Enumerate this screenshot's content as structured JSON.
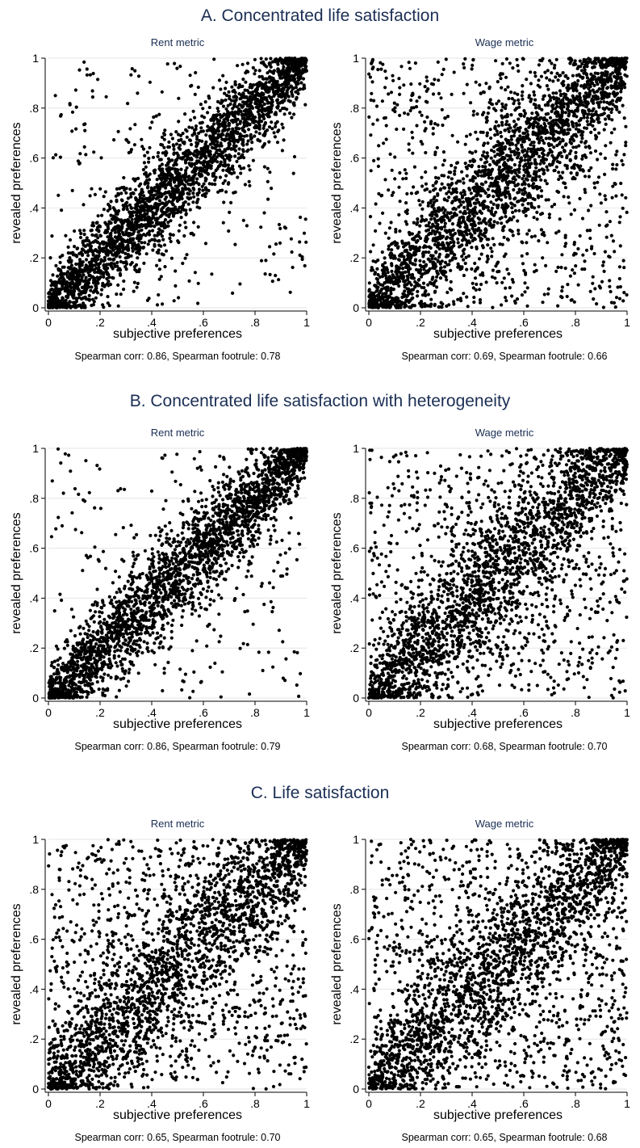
{
  "figure": {
    "sections": [
      {
        "id": "A",
        "title": "A. Concentrated life satisfaction"
      },
      {
        "id": "B",
        "title": "B. Concentrated life satisfaction with heterogeneity"
      },
      {
        "id": "C",
        "title": "C. Life satisfaction"
      }
    ]
  },
  "chart_data": [
    {
      "type": "scatter",
      "section": "A",
      "title": "Rent metric",
      "xlabel": "subjective preferences",
      "ylabel": "revealed preferences",
      "xlim": [
        0,
        1
      ],
      "ylim": [
        0,
        1
      ],
      "xticks": [
        "0",
        ".2",
        ".4",
        ".6",
        ".8",
        "1"
      ],
      "yticks": [
        "0",
        ".2",
        ".4",
        ".6",
        ".8",
        "1"
      ],
      "grid": true,
      "n_points": 3000,
      "band_sd": 0.09,
      "noise_frac": 0.1,
      "note": "Spearman corr: 0.86, Spearman footrule: 0.78"
    },
    {
      "type": "scatter",
      "section": "A",
      "title": "Wage metric",
      "xlabel": "subjective preferences",
      "ylabel": "revealed preferences",
      "xlim": [
        0,
        1
      ],
      "ylim": [
        0,
        1
      ],
      "xticks": [
        "0",
        ".2",
        ".4",
        ".6",
        ".8",
        "1"
      ],
      "yticks": [
        "0",
        ".2",
        ".4",
        ".6",
        ".8",
        "1"
      ],
      "grid": true,
      "n_points": 3000,
      "band_sd": 0.12,
      "noise_frac": 0.28,
      "note": "Spearman corr: 0.69, Spearman footrule: 0.66"
    },
    {
      "type": "scatter",
      "section": "B",
      "title": "Rent metric",
      "xlabel": "subjective preferences",
      "ylabel": "revealed preferences",
      "xlim": [
        0,
        1
      ],
      "ylim": [
        0,
        1
      ],
      "xticks": [
        "0",
        ".2",
        ".4",
        ".6",
        ".8",
        "1"
      ],
      "yticks": [
        "0",
        ".2",
        ".4",
        ".6",
        ".8",
        "1"
      ],
      "grid": true,
      "n_points": 2800,
      "band_sd": 0.09,
      "noise_frac": 0.1,
      "note": "Spearman corr: 0.86, Spearman footrule: 0.79"
    },
    {
      "type": "scatter",
      "section": "B",
      "title": "Wage metric",
      "xlabel": "subjective preferences",
      "ylabel": "revealed preferences",
      "xlim": [
        0,
        1
      ],
      "ylim": [
        0,
        1
      ],
      "xticks": [
        "0",
        ".2",
        ".4",
        ".6",
        ".8",
        "1"
      ],
      "yticks": [
        "0",
        ".2",
        ".4",
        ".6",
        ".8",
        "1"
      ],
      "grid": true,
      "n_points": 2800,
      "band_sd": 0.12,
      "noise_frac": 0.3,
      "note": "Spearman corr: 0.68, Spearman footrule: 0.70"
    },
    {
      "type": "scatter",
      "section": "C",
      "title": "Rent metric",
      "xlabel": "subjective preferences",
      "ylabel": "revealed preferences",
      "xlim": [
        0,
        1
      ],
      "ylim": [
        0,
        1
      ],
      "xticks": [
        "0",
        ".2",
        ".4",
        ".6",
        ".8",
        "1"
      ],
      "yticks": [
        "0",
        ".2",
        ".4",
        ".6",
        ".8",
        "1"
      ],
      "grid": true,
      "n_points": 2800,
      "band_sd": 0.13,
      "noise_frac": 0.38,
      "note": "Spearman corr: 0.65, Spearman footrule: 0.70"
    },
    {
      "type": "scatter",
      "section": "C",
      "title": "Wage metric",
      "xlabel": "subjective preferences",
      "ylabel": "revealed preferences",
      "xlim": [
        0,
        1
      ],
      "ylim": [
        0,
        1
      ],
      "xticks": [
        "0",
        ".2",
        ".4",
        ".6",
        ".8",
        "1"
      ],
      "yticks": [
        "0",
        ".2",
        ".4",
        ".6",
        ".8",
        "1"
      ],
      "grid": true,
      "n_points": 2800,
      "band_sd": 0.13,
      "noise_frac": 0.38,
      "note": "Spearman corr: 0.65, Spearman footrule: 0.68"
    }
  ]
}
